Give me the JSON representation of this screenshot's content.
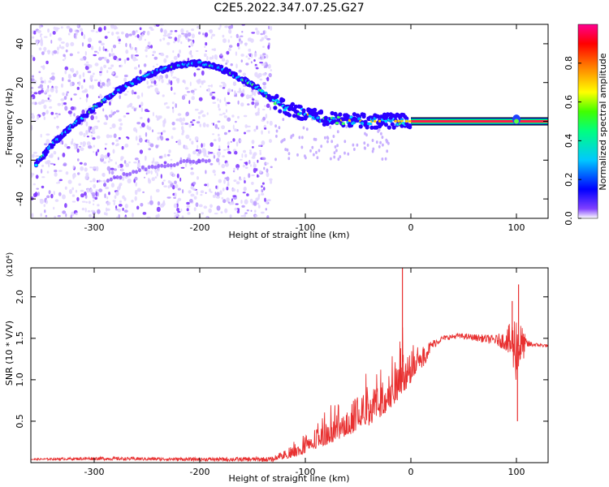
{
  "title": "C2E5.2022.347.07.25.G27",
  "chart_data": [
    {
      "type": "scatter",
      "name": "spectrogram",
      "xlabel": "Height of straight line (km)",
      "ylabel": "Frequency (Hz)",
      "xlim": [
        -360,
        130
      ],
      "ylim": [
        -50,
        50
      ],
      "xticks": [
        -300,
        -200,
        -100,
        0,
        100
      ],
      "yticks": [
        -40,
        -20,
        0,
        20,
        40
      ],
      "colorbar": {
        "label": "Normalized spectral amplitude",
        "range": [
          0,
          1
        ],
        "ticks": [
          0.0,
          0.2,
          0.4,
          0.6,
          0.8
        ],
        "colors": [
          "#d8c8ff",
          "#6a00ff",
          "#0000ff",
          "#00c8ff",
          "#00ff60",
          "#ffff00",
          "#ff8000",
          "#ff0000",
          "#ff00a0"
        ]
      },
      "ridge": {
        "x": [
          -355,
          -340,
          -320,
          -300,
          -280,
          -260,
          -240,
          -220,
          -200,
          -185,
          -175,
          -165,
          -150,
          -135,
          -120,
          -100,
          -80,
          -60,
          -40,
          -20,
          0,
          130
        ],
        "y": [
          -22,
          -12,
          -2,
          7,
          15,
          21,
          26,
          29,
          30,
          28,
          26,
          23,
          19,
          13,
          7,
          4,
          1,
          0.5,
          0,
          0.2,
          0,
          0
        ]
      },
      "faint_track": {
        "x": [
          -290,
          -270,
          -250,
          -230,
          -210,
          -190
        ],
        "y": [
          -32,
          -27,
          -24,
          -22,
          -21,
          -21
        ]
      }
    },
    {
      "type": "line",
      "name": "snr",
      "xlabel": "Height of straight line (km)",
      "ylabel": "SNR (10 * V/V)",
      "y_multiplier": "(x10⁴)",
      "xlim": [
        -360,
        130
      ],
      "ylim": [
        0,
        2.35
      ],
      "xticks": [
        -300,
        -200,
        -100,
        0,
        100
      ],
      "yticks": [
        0.5,
        1.0,
        1.5,
        2.0
      ],
      "color": "#e83030",
      "x": [
        -360,
        -300,
        -200,
        -130,
        -115,
        -100,
        -80,
        -60,
        -40,
        -20,
        -10,
        0,
        10,
        20,
        30,
        45,
        60,
        80,
        90,
        100,
        110,
        120,
        130
      ],
      "y": [
        0.04,
        0.05,
        0.04,
        0.04,
        0.08,
        0.15,
        0.28,
        0.4,
        0.55,
        0.75,
        0.95,
        1.05,
        1.25,
        1.42,
        1.5,
        1.53,
        1.51,
        1.48,
        1.47,
        1.4,
        1.43,
        1.42,
        1.41
      ],
      "spread": [
        0.01,
        0.02,
        0.02,
        0.03,
        0.08,
        0.12,
        0.2,
        0.25,
        0.35,
        0.4,
        0.5,
        0.3,
        0.15,
        0.06,
        0.03,
        0.03,
        0.04,
        0.06,
        0.12,
        0.45,
        0.05,
        0.02,
        0.02
      ],
      "spikes": [
        {
          "x": -8,
          "y": 2.35
        },
        {
          "x": 102,
          "y": 2.15
        },
        {
          "x": 101,
          "y": 0.5
        },
        {
          "x": 96,
          "y": 1.95
        }
      ]
    }
  ]
}
